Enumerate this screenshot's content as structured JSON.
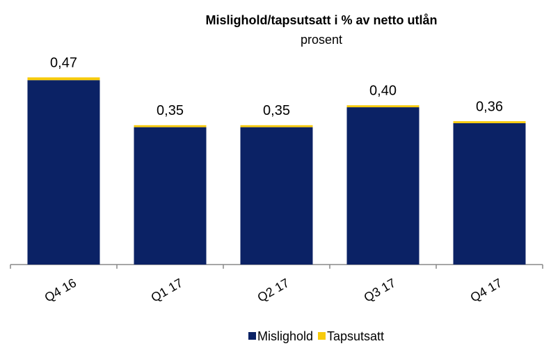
{
  "chart_data": {
    "type": "stacked_bar",
    "title": "Mislighold/tapsutsatt i % av netto utlån",
    "subtitle": "prosent",
    "categories": [
      "Q4 16",
      "Q1 17",
      "Q2 17",
      "Q3 17",
      "Q4 17"
    ],
    "series": [
      {
        "name": "Mislighold",
        "color": "#0b2265",
        "values": [
          0.463,
          0.345,
          0.345,
          0.395,
          0.355
        ]
      },
      {
        "name": "Tapsutsatt",
        "color": "#f7cb0d",
        "values": [
          0.007,
          0.005,
          0.005,
          0.005,
          0.005
        ]
      }
    ],
    "total_labels": [
      "0,47",
      "0,35",
      "0,35",
      "0,40",
      "0,36"
    ]
  }
}
